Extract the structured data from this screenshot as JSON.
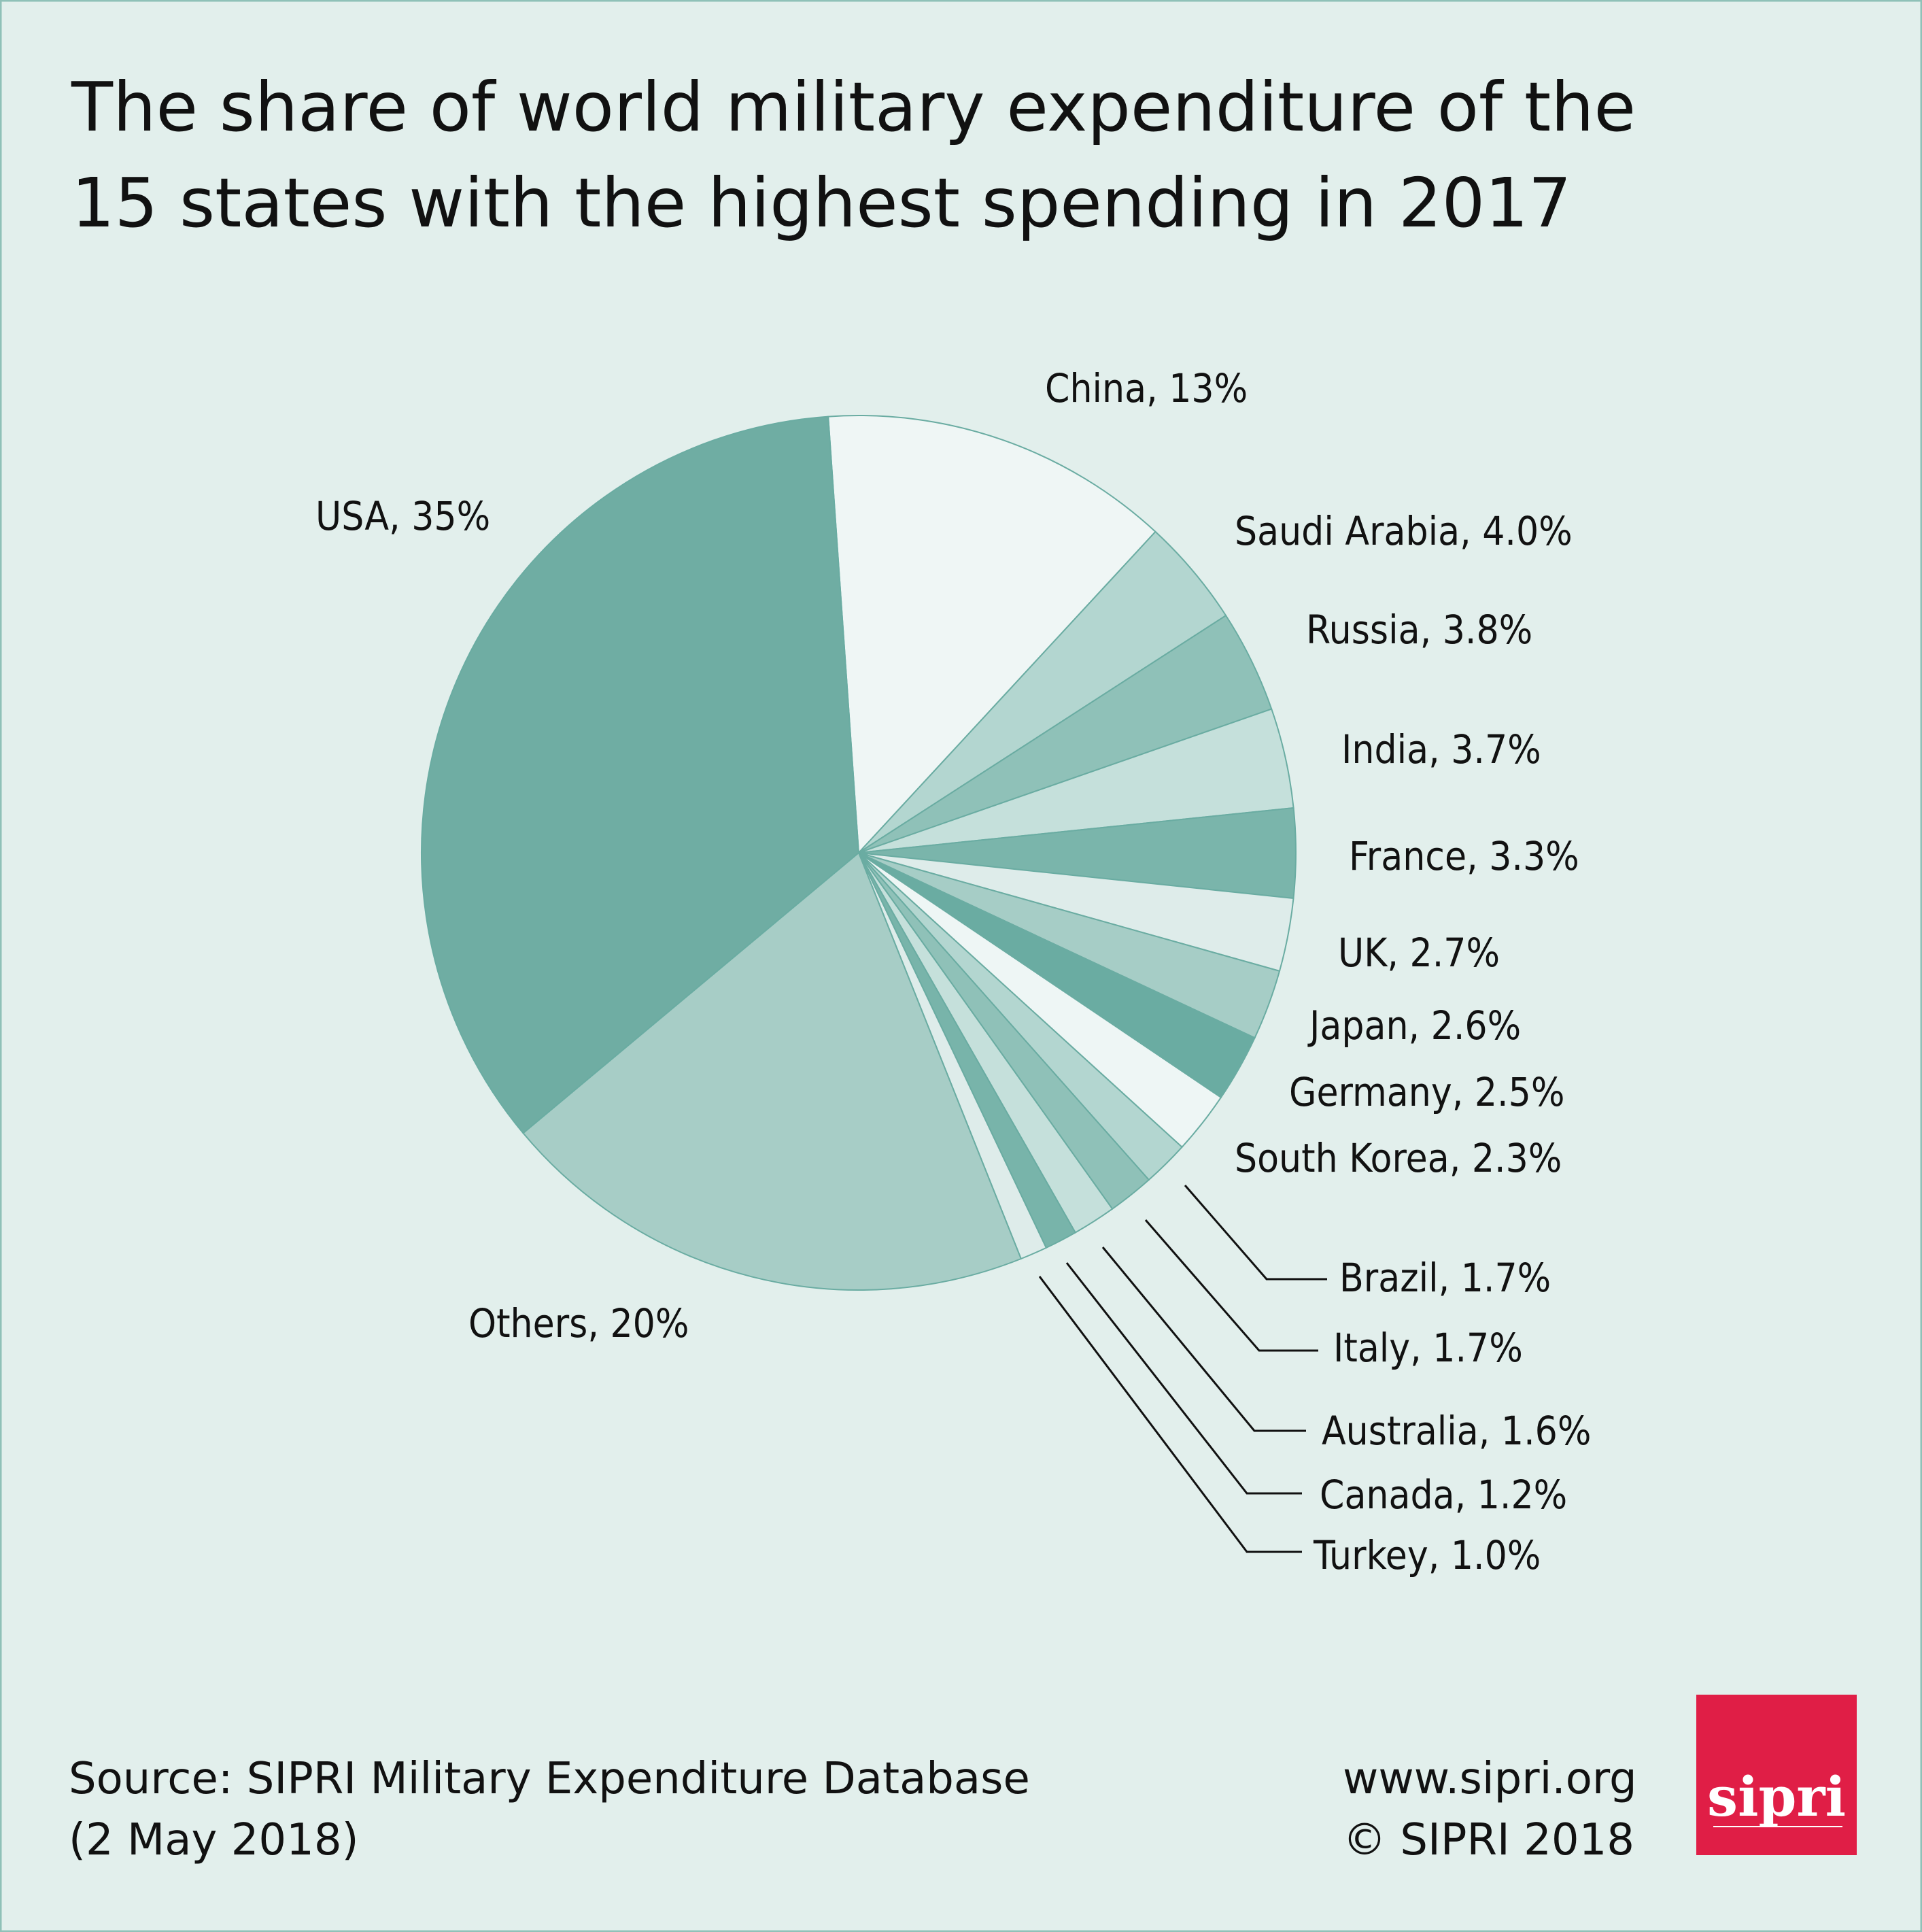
{
  "chart_data": {
    "type": "pie",
    "title": [
      "The share of world military expenditure of the",
      "15 states with the highest spending in 2017"
    ],
    "start_angle_deg": -4,
    "direction": "clockwise",
    "slices": [
      {
        "name": "China",
        "value": 13,
        "label": "China, 13%",
        "color": "#eff6f5"
      },
      {
        "name": "Saudi Arabia",
        "value": 4.0,
        "label": "Saudi Arabia, 4.0%",
        "color": "#b3d6d0"
      },
      {
        "name": "Russia",
        "value": 3.8,
        "label": "Russia, 3.8%",
        "color": "#8fc1b8"
      },
      {
        "name": "India",
        "value": 3.7,
        "label": "India, 3.7%",
        "color": "#c5e0db"
      },
      {
        "name": "France",
        "value": 3.3,
        "label": "France, 3.3%",
        "color": "#7ab5ab"
      },
      {
        "name": "UK",
        "value": 2.7,
        "label": "UK, 2.7%",
        "color": "#deecea"
      },
      {
        "name": "Japan",
        "value": 2.6,
        "label": "Japan, 2.6%",
        "color": "#a6cdc6"
      },
      {
        "name": "Germany",
        "value": 2.5,
        "label": "Germany, 2.5%",
        "color": "#6aaca2"
      },
      {
        "name": "South Korea",
        "value": 2.3,
        "label": "South Korea, 2.3%",
        "color": "#eef6f5"
      },
      {
        "name": "Brazil",
        "value": 1.7,
        "label": "Brazil, 1.7%",
        "color": "#b3d6d0"
      },
      {
        "name": "Italy",
        "value": 1.7,
        "label": "Italy, 1.7%",
        "color": "#8fc1b8"
      },
      {
        "name": "Australia",
        "value": 1.6,
        "label": "Australia, 1.6%",
        "color": "#c5e0db"
      },
      {
        "name": "Canada",
        "value": 1.2,
        "label": "Canada, 1.2%",
        "color": "#78b4aa"
      },
      {
        "name": "Turkey",
        "value": 1.0,
        "label": "Turkey, 1.0%",
        "color": "#deecea"
      },
      {
        "name": "Others",
        "value": 20,
        "label": "Others, 20%",
        "color": "#a7cdc6"
      },
      {
        "name": "USA",
        "value": 35,
        "label": "USA, 35%",
        "color": "#6fada3"
      }
    ]
  },
  "footer": {
    "source_line1": "Source: SIPRI Military Expenditure Database",
    "source_line2": "(2 May 2018)",
    "website": "www.sipri.org",
    "copyright": "© SIPRI 2018"
  },
  "logo": {
    "text": "sipri",
    "color": "#e01e46"
  },
  "colors": {
    "background": "#e2efec",
    "slice_border": "#6aaca2"
  }
}
